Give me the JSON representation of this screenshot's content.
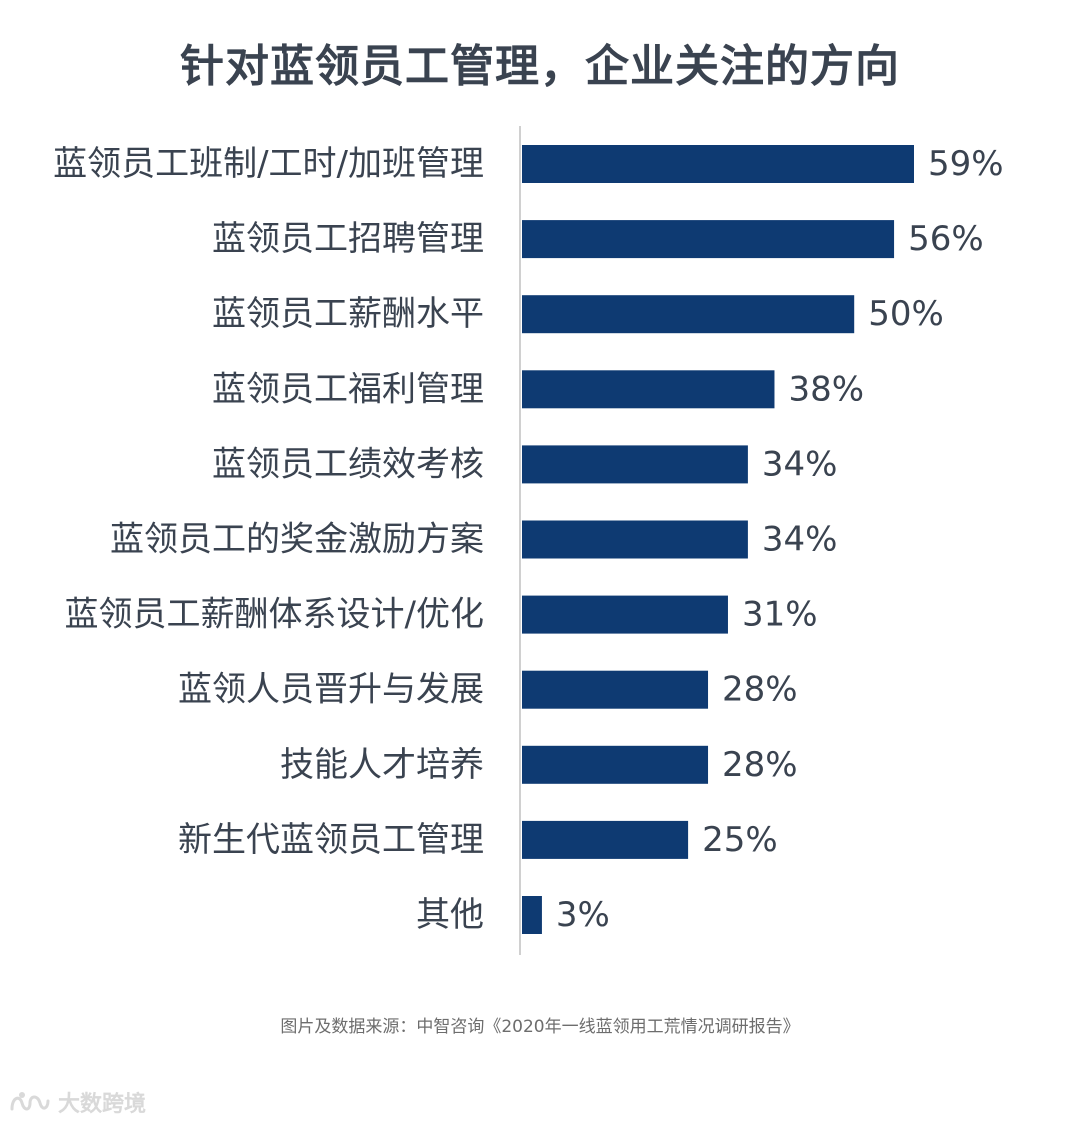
{
  "title": "针对蓝领员工管理，企业关注的方向",
  "source": "图片及数据来源：中智咨询《2020年一线蓝领用工荒情况调研报告》",
  "watermark": {
    "text": "大数跨境",
    "icon": "logo-icon"
  },
  "colors": {
    "bar": "#0e3a72",
    "label": "#3a4350",
    "axis": "#d0d0d0"
  },
  "chart_data": {
    "type": "bar",
    "orientation": "horizontal",
    "categories": [
      "蓝领员工班制/工时/加班管理",
      "蓝领员工招聘管理",
      "蓝领员工薪酬水平",
      "蓝领员工福利管理",
      "蓝领员工绩效考核",
      "蓝领员工的奖金激励方案",
      "蓝领员工薪酬体系设计/优化",
      "蓝领人员晋升与发展",
      "技能人才培养",
      "新生代蓝领员工管理",
      "其他"
    ],
    "values": [
      59,
      56,
      50,
      38,
      34,
      34,
      31,
      28,
      28,
      25,
      3
    ],
    "value_labels": [
      "59%",
      "56%",
      "50%",
      "38%",
      "34%",
      "34%",
      "31%",
      "28%",
      "28%",
      "25%",
      "3%"
    ],
    "unit": "%",
    "xlim": [
      0,
      60
    ],
    "grid": false,
    "legend": "none"
  }
}
